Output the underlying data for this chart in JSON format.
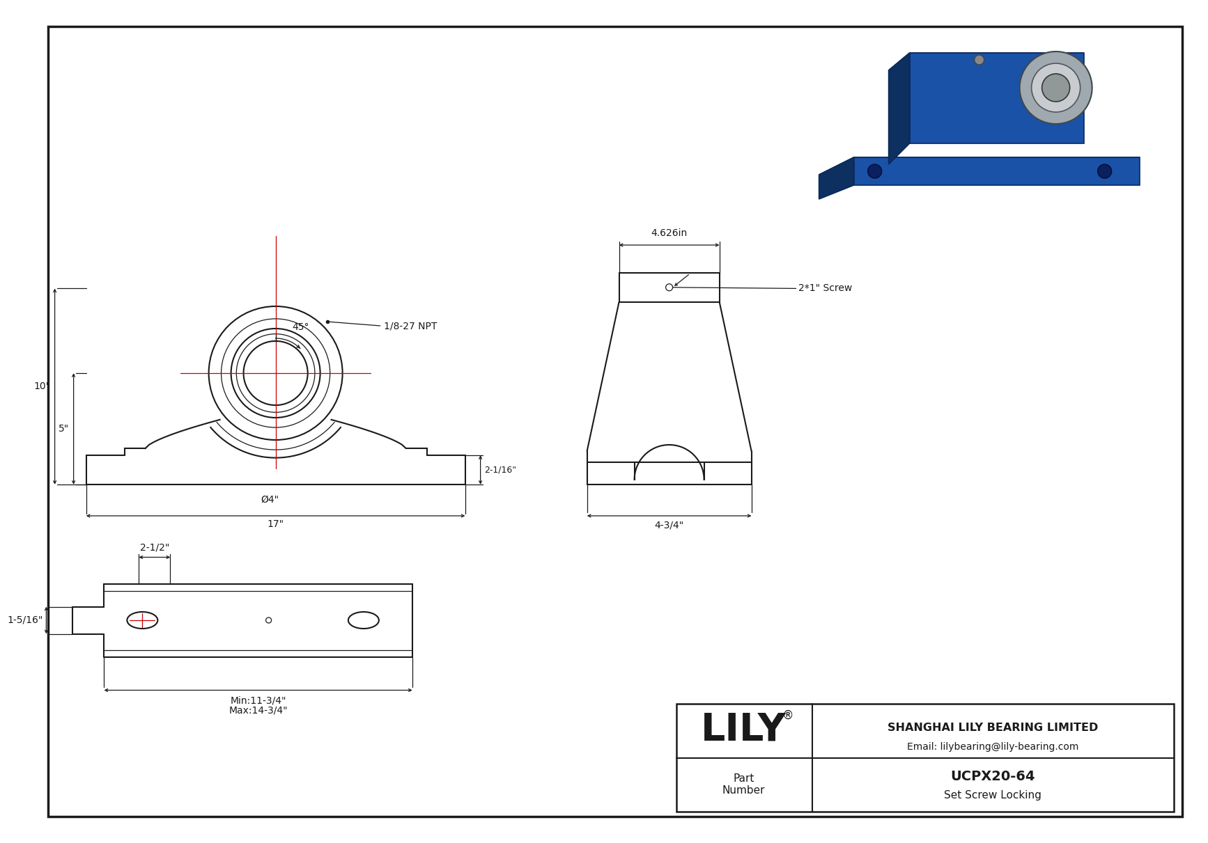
{
  "bg_color": "#ffffff",
  "line_color": "#1a1a1a",
  "red_color": "#cc0000",
  "blue_color": "#1565c0",
  "blue_dark": "#0d3b7a",
  "blue_mid": "#1a52a8",
  "blue_light": "#2060c0",
  "blue_top": "#2878d0",
  "silver": "#c0c0c0",
  "silver_dark": "#909090",
  "silver_light": "#e0e0e0",
  "title": "UCPX20-64",
  "subtitle": "Set Screw Locking",
  "company": "SHANGHAI LILY BEARING LIMITED",
  "email": "Email: lilybearing@lily-bearing.com",
  "brand": "LILY",
  "part_label": "Part\nNumber",
  "dims": {
    "front_width": "17\"",
    "bore": "Ø4\"",
    "height_total": "10\"",
    "height_base": "5\"",
    "angle": "45°",
    "npt": "1/8-27 NPT",
    "side_height": "2-1/16\"",
    "side_width": "4.626in",
    "screw": "2*1\" Screw",
    "side_base": "4-3/4\"",
    "top_slot": "2-1/2\"",
    "left_ext": "1-5/16\"",
    "min_len": "Min:11-3/4\"",
    "max_len": "Max:14-3/4\""
  }
}
